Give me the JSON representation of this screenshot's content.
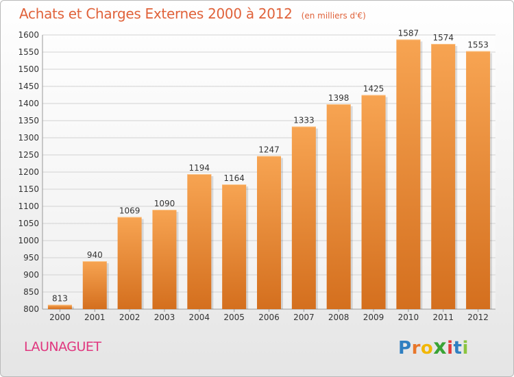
{
  "chart_data": {
    "type": "bar",
    "title": "Achats et Charges Externes 2000 à 2012",
    "subtitle": "(en milliers d'€)",
    "categories": [
      "2000",
      "2001",
      "2002",
      "2003",
      "2004",
      "2005",
      "2006",
      "2007",
      "2008",
      "2009",
      "2010",
      "2011",
      "2012"
    ],
    "values": [
      813,
      940,
      1069,
      1090,
      1194,
      1164,
      1247,
      1333,
      1398,
      1425,
      1587,
      1574,
      1553
    ],
    "ylim": [
      800,
      1600
    ],
    "yticks": [
      800,
      850,
      900,
      950,
      1000,
      1050,
      1100,
      1150,
      1200,
      1250,
      1300,
      1350,
      1400,
      1450,
      1500,
      1550,
      1600
    ],
    "grid": true,
    "bar_color_top": "#f7a452",
    "bar_color_bottom": "#d46f1e"
  },
  "commune_name": "LAUNAGUET",
  "brand": {
    "letters": [
      "P",
      "r",
      "o",
      "x",
      "i",
      "t",
      "i"
    ],
    "colors": [
      "#2f7fc1",
      "#e8762a",
      "#f2b705",
      "#3aa335",
      "#e23a3a",
      "#2f7fc1",
      "#8ac43f"
    ]
  }
}
